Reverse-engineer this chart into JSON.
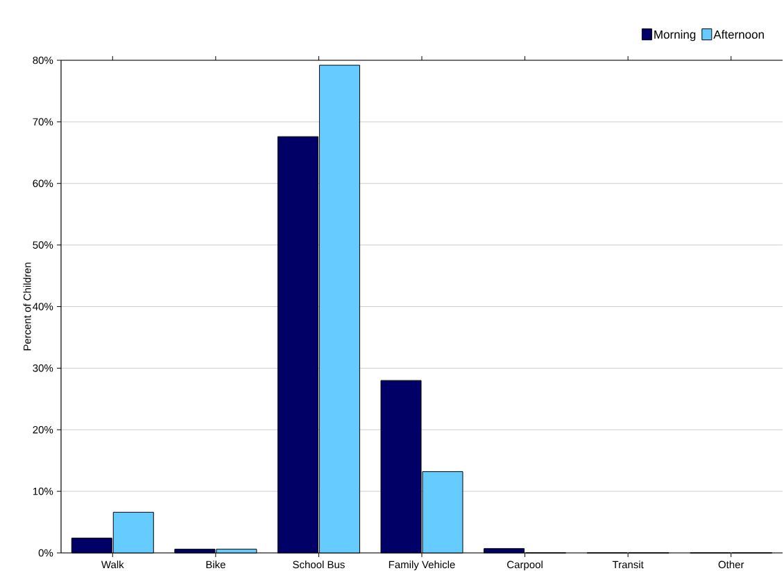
{
  "chart_data": {
    "type": "bar",
    "categories": [
      "Walk",
      "Bike",
      "School Bus",
      "Family Vehicle",
      "Carpool",
      "Transit",
      "Other"
    ],
    "series": [
      {
        "name": "Morning",
        "color": "#000066",
        "values": [
          2.4,
          0.6,
          67.6,
          28.0,
          0.7,
          0,
          0
        ]
      },
      {
        "name": "Afternoon",
        "color": "#66ccff",
        "values": [
          6.6,
          0.6,
          79.2,
          13.2,
          0,
          0,
          0
        ]
      }
    ],
    "ylabel": "Percent of Children",
    "ylim": [
      0,
      80
    ],
    "yticks": [
      {
        "value": 0,
        "label": "0%"
      },
      {
        "value": 10,
        "label": "10%"
      },
      {
        "value": 20,
        "label": "20%"
      },
      {
        "value": 30,
        "label": "30%"
      },
      {
        "value": 40,
        "label": "40%"
      },
      {
        "value": 50,
        "label": "50%"
      },
      {
        "value": 60,
        "label": "60%"
      },
      {
        "value": 70,
        "label": "70%"
      },
      {
        "value": 80,
        "label": "80%"
      }
    ],
    "grid": "y",
    "legend": "top right"
  }
}
